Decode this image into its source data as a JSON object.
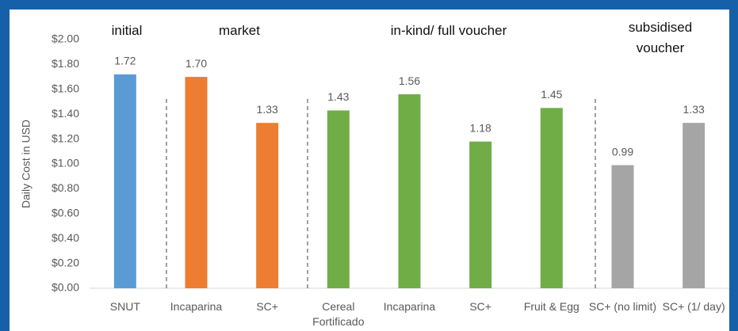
{
  "chart_data": {
    "type": "bar",
    "y_axis_label": "Daily Cost in USD",
    "categories": [
      "SNUT",
      "Incaparina",
      "SC+",
      "Cereal Fortificado",
      "Incaparina",
      "SC+",
      "Fruit & Egg",
      "SC+ (no limit)",
      "SC+ (1/ day)"
    ],
    "values": [
      1.72,
      1.7,
      1.33,
      1.43,
      1.56,
      1.18,
      1.45,
      0.99,
      1.33
    ],
    "value_labels": [
      "1.72",
      "1.70",
      "1.33",
      "1.43",
      "1.56",
      "1.18",
      "1.45",
      "0.99",
      "1.33"
    ],
    "colors": [
      "#5b9bd5",
      "#ed7d31",
      "#ed7d31",
      "#70ad47",
      "#70ad47",
      "#70ad47",
      "#70ad47",
      "#a5a5a5",
      "#a5a5a5"
    ],
    "groups": [
      "initial",
      "market",
      "in-kind/ full voucher",
      "subsidised voucher"
    ],
    "ylim": [
      0,
      2
    ],
    "yticks": [
      {
        "value": 0,
        "label": "$0.00"
      },
      {
        "value": 0.2,
        "label": "$0.20"
      },
      {
        "value": 0.4,
        "label": "$0.40"
      },
      {
        "value": 0.6,
        "label": "$0.60"
      },
      {
        "value": 0.8,
        "label": "$0.80"
      },
      {
        "value": 1,
        "label": "$1.00"
      },
      {
        "value": 1.2,
        "label": "$1.20"
      },
      {
        "value": 1.4,
        "label": "$1.40"
      },
      {
        "value": 1.6,
        "label": "$1.60"
      },
      {
        "value": 1.8,
        "label": "$1.80"
      },
      {
        "value": 2,
        "label": "$2.00"
      }
    ],
    "grid": false
  }
}
